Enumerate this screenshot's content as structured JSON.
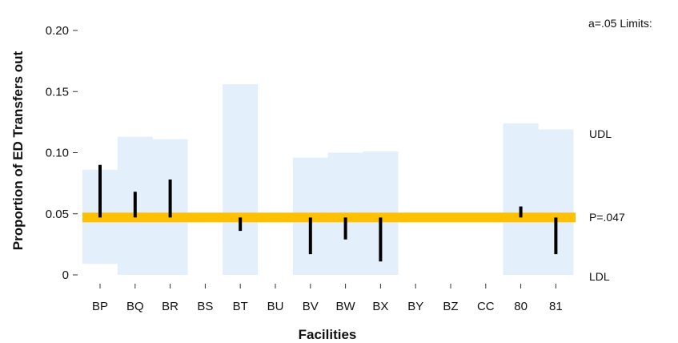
{
  "chart_data": {
    "type": "control-chart",
    "xlabel": "Facilities",
    "ylabel": "Proportion of ED Transfers out",
    "ylim": [
      0,
      0.2
    ],
    "yticks": [
      0,
      0.05,
      0.1,
      0.15,
      0.2
    ],
    "ytick_labels": [
      "0",
      "0.05",
      "0.10",
      "0.15",
      "0.20"
    ],
    "grid": false,
    "categories": [
      "BP",
      "BQ",
      "BR",
      "BS",
      "BT",
      "BU",
      "BV",
      "BW",
      "BX",
      "BY",
      "BZ",
      "CC",
      "80",
      "81"
    ],
    "center_line": 0.047,
    "limits": [
      {
        "facility": "BP",
        "ldl": 0.009,
        "udl": 0.086
      },
      {
        "facility": "BQ",
        "ldl": 0.0,
        "udl": 0.113
      },
      {
        "facility": "BR",
        "ldl": 0.0,
        "udl": 0.111
      },
      {
        "facility": "BS",
        "ldl": null,
        "udl": null
      },
      {
        "facility": "BT",
        "ldl": 0.0,
        "udl": 0.156
      },
      {
        "facility": "BU",
        "ldl": null,
        "udl": null
      },
      {
        "facility": "BV",
        "ldl": 0.0,
        "udl": 0.096
      },
      {
        "facility": "BW",
        "ldl": 0.0,
        "udl": 0.1
      },
      {
        "facility": "BX",
        "ldl": 0.0,
        "udl": 0.101
      },
      {
        "facility": "BY",
        "ldl": null,
        "udl": null
      },
      {
        "facility": "BZ",
        "ldl": null,
        "udl": null
      },
      {
        "facility": "CC",
        "ldl": null,
        "udl": null
      },
      {
        "facility": "80",
        "ldl": 0.0,
        "udl": 0.124
      },
      {
        "facility": "81",
        "ldl": 0.0,
        "udl": 0.119
      }
    ],
    "values": [
      0.09,
      0.068,
      0.078,
      null,
      0.036,
      null,
      0.017,
      0.029,
      0.011,
      null,
      null,
      null,
      0.056,
      0.017
    ],
    "side_labels": {
      "header": "a=.05 Limits:",
      "udl": "UDL",
      "center": "P=.047",
      "ldl": "LDL"
    },
    "colors": {
      "limit_band": "#e3effb",
      "center_line": "#ffc000",
      "bar": "#000000"
    }
  }
}
